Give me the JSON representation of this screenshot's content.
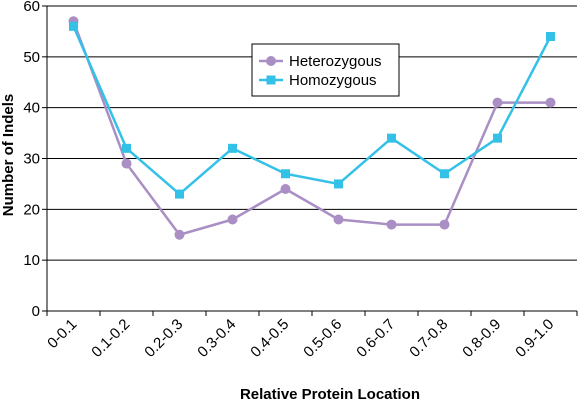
{
  "chart_data": {
    "type": "line",
    "title": "",
    "xlabel": "Relative Protein Location",
    "ylabel": "Number of Indels",
    "categories": [
      "0-0.1",
      "0.1-0.2",
      "0.2-0.3",
      "0.3-0.4",
      "0.4-0.5",
      "0.5-0.6",
      "0.6-0.7",
      "0.7-0.8",
      "0.8-0.9",
      "0.9-1.0"
    ],
    "ylim": [
      0,
      60
    ],
    "yticks": [
      0,
      10,
      20,
      30,
      40,
      50,
      60
    ],
    "grid": "horizontal",
    "legend": "upper-center",
    "series": [
      {
        "name": "Heterozygous",
        "values": [
          57,
          29,
          15,
          18,
          24,
          18,
          17,
          17,
          41,
          41
        ],
        "color": "#a98fc4",
        "marker": "circle"
      },
      {
        "name": "Homozygous",
        "values": [
          56,
          32,
          23,
          32,
          27,
          25,
          34,
          27,
          34,
          54
        ],
        "color": "#33c1e8",
        "marker": "square"
      }
    ]
  }
}
